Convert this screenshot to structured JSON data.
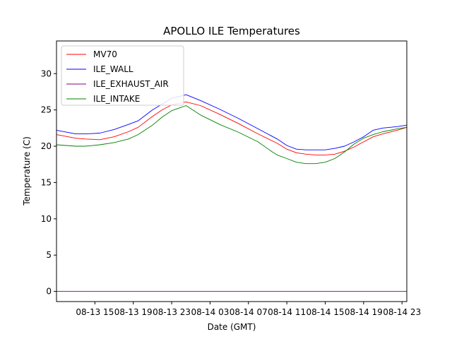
{
  "chart_data": {
    "type": "line",
    "title": "APOLLO ILE Temperatures",
    "xlabel": "Date (GMT)",
    "ylabel": "Temperature (C)",
    "xlim": [
      11.0,
      47.5
    ],
    "ylim": [
      -1.4,
      34.5
    ],
    "x_ticks": [
      {
        "value": 15,
        "label": "08-13 15"
      },
      {
        "value": 19,
        "label": "08-13 19"
      },
      {
        "value": 23,
        "label": "08-13 23"
      },
      {
        "value": 27,
        "label": "08-14 03"
      },
      {
        "value": 31,
        "label": "08-14 07"
      },
      {
        "value": 35,
        "label": "08-14 11"
      },
      {
        "value": 39,
        "label": "08-14 15"
      },
      {
        "value": 43,
        "label": "08-14 19"
      },
      {
        "value": 47,
        "label": "08-14 23"
      }
    ],
    "y_ticks": [
      0,
      5,
      10,
      15,
      20,
      25,
      30
    ],
    "legend_position": "top-left",
    "series": [
      {
        "name": "MV70",
        "color": "#ff0000",
        "x": [
          11.0,
          13.0,
          14.0,
          15.5,
          17.0,
          18.5,
          19.5,
          21.0,
          22.0,
          23.0,
          24.5,
          26.0,
          28.0,
          30.0,
          32.0,
          34.0,
          35.0,
          36.0,
          37.0,
          38.0,
          39.0,
          40.0,
          41.0,
          42.0,
          43.0,
          44.0,
          45.0,
          46.5,
          47.5
        ],
        "y": [
          21.6,
          21.1,
          21.0,
          20.9,
          21.3,
          22.0,
          22.6,
          24.1,
          25.0,
          25.7,
          26.1,
          25.6,
          24.4,
          23.1,
          21.7,
          20.4,
          19.6,
          19.1,
          18.9,
          18.8,
          18.8,
          18.9,
          19.3,
          19.9,
          20.6,
          21.3,
          21.7,
          22.2,
          22.6
        ]
      },
      {
        "name": "ILE_WALL",
        "color": "#0000ff",
        "x": [
          11.0,
          13.0,
          14.0,
          15.5,
          17.0,
          18.5,
          19.5,
          21.0,
          22.0,
          23.0,
          24.5,
          26.0,
          28.0,
          30.0,
          32.0,
          34.0,
          35.0,
          36.0,
          37.0,
          38.0,
          39.0,
          40.0,
          41.0,
          42.0,
          43.0,
          44.0,
          45.0,
          46.5,
          47.5
        ],
        "y": [
          22.2,
          21.7,
          21.7,
          21.8,
          22.3,
          23.0,
          23.5,
          25.0,
          25.8,
          26.6,
          27.1,
          26.3,
          25.1,
          23.8,
          22.4,
          21.0,
          20.1,
          19.6,
          19.5,
          19.5,
          19.5,
          19.7,
          20.0,
          20.6,
          21.3,
          22.2,
          22.5,
          22.7,
          22.9
        ]
      },
      {
        "name": "ILE_EXHAUST_AIR",
        "color": "#800080",
        "x": [
          11.0,
          47.5
        ],
        "y": [
          0.0,
          0.0
        ]
      },
      {
        "name": "ILE_INTAKE",
        "color": "#008000",
        "x": [
          11.0,
          13.0,
          14.0,
          15.5,
          17.0,
          18.5,
          19.5,
          21.0,
          22.0,
          23.0,
          24.5,
          26.0,
          28.0,
          30.0,
          32.0,
          33.5,
          34.0,
          35.0,
          36.0,
          37.0,
          38.0,
          39.0,
          40.0,
          41.0,
          42.0,
          43.0,
          44.0,
          45.0,
          46.5,
          47.5
        ],
        "y": [
          20.2,
          20.0,
          20.0,
          20.2,
          20.5,
          21.0,
          21.6,
          22.9,
          24.0,
          24.9,
          25.6,
          24.3,
          23.0,
          21.9,
          20.6,
          19.2,
          18.8,
          18.3,
          17.8,
          17.6,
          17.6,
          17.8,
          18.3,
          19.2,
          20.3,
          21.1,
          21.6,
          22.0,
          22.4,
          22.6
        ]
      }
    ]
  }
}
